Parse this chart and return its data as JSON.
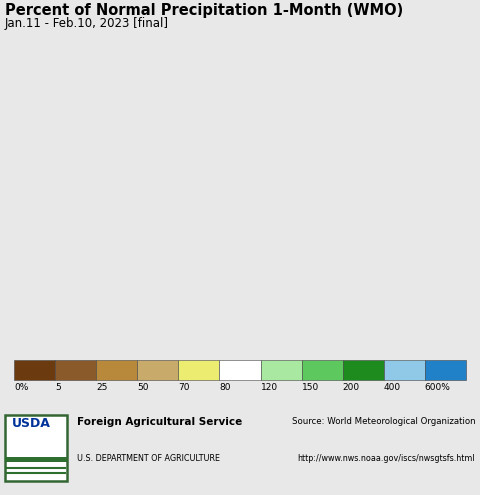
{
  "title": "Percent of Normal Precipitation 1-Month (WMO)",
  "subtitle": "Jan.11 - Feb.10, 2023 [final]",
  "colorbar_labels": [
    "0%",
    "5",
    "25",
    "50",
    "70",
    "80",
    "120",
    "150",
    "200",
    "400",
    "600%"
  ],
  "colorbar_colors": [
    "#6b3a0f",
    "#8B5A2B",
    "#B8893A",
    "#C8AA6A",
    "#ECEC70",
    "#FFFFFF",
    "#A8E8A0",
    "#5DC85D",
    "#1E8B1E",
    "#90C8E8",
    "#2080C8"
  ],
  "ocean_color": "#b8e8f8",
  "land_bg_color": "#e8ddd0",
  "border_color": "#888888",
  "country_border_color": "#000000",
  "fig_bg_color": "#e8e8e8",
  "footer_bg_color": "#e8e8e8",
  "title_fontsize": 10.5,
  "subtitle_fontsize": 8.5,
  "footer_left_line1": "Foreign Agricultural Service",
  "footer_left_line2": "U.S. DEPARTMENT OF AGRICULTURE",
  "footer_right_line1": "Source: World Meteorological Organization",
  "footer_right_line2": "http://www.nws.noaa.gov/iscs/nwsgtsfs.html"
}
